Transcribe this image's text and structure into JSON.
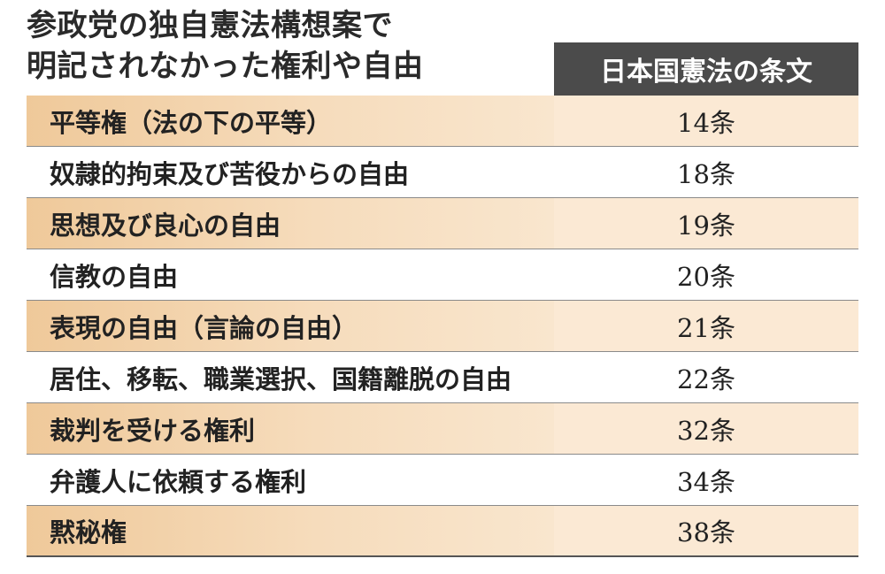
{
  "title": {
    "line1": "参政党の独自憲法構想案で",
    "line2": "明記されなかった権利や自由"
  },
  "header": {
    "column_label": "日本国憲法の条文"
  },
  "rows": [
    {
      "right": "平等権（法の下の平等）",
      "article": "14条"
    },
    {
      "right": "奴隷的拘束及び苦役からの自由",
      "article": "18条"
    },
    {
      "right": "思想及び良心の自由",
      "article": "19条"
    },
    {
      "right": "信教の自由",
      "article": "20条"
    },
    {
      "right": "表現の自由（言論の自由）",
      "article": "21条"
    },
    {
      "right": "居住、移転、職業選択、国籍離脱の自由",
      "article": "22条"
    },
    {
      "right": "裁判を受ける権利",
      "article": "32条"
    },
    {
      "right": "弁護人に依頼する権利",
      "article": "34条"
    },
    {
      "right": "黙秘権",
      "article": "38条"
    }
  ],
  "colors": {
    "header_bg": "#4b4b4b",
    "row_shade_left": "#efc99a",
    "row_shade_right": "#fbe9d4"
  }
}
